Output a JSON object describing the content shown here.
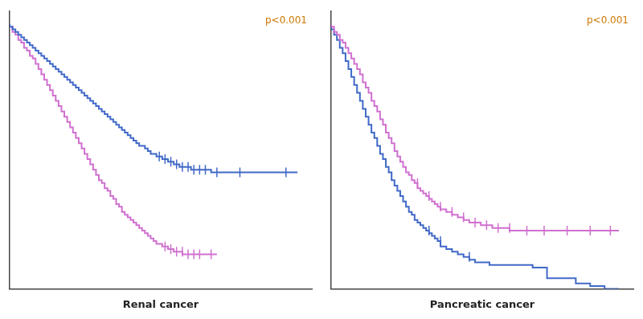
{
  "chart_data": [
    {
      "type": "line",
      "xlabel": "Renal cancer",
      "xlim": [
        0,
        1.05
      ],
      "ylim": [
        0,
        1.05
      ],
      "tick_labels": false,
      "grid": false,
      "annotations": [
        {
          "text": "p<0.001",
          "color": "#CC7700"
        }
      ],
      "series": [
        {
          "type": "line",
          "line_style": "step",
          "color": "#4169C8",
          "x": [
            0,
            0.01,
            0.02,
            0.03,
            0.04,
            0.05,
            0.06,
            0.07,
            0.08,
            0.09,
            0.1,
            0.11,
            0.12,
            0.13,
            0.14,
            0.15,
            0.16,
            0.17,
            0.18,
            0.19,
            0.2,
            0.21,
            0.22,
            0.23,
            0.24,
            0.25,
            0.26,
            0.27,
            0.28,
            0.29,
            0.3,
            0.31,
            0.32,
            0.33,
            0.34,
            0.35,
            0.36,
            0.37,
            0.38,
            0.39,
            0.4,
            0.41,
            0.42,
            0.43,
            0.44,
            0.45,
            0.46,
            0.47,
            0.48,
            0.49,
            0.5,
            0.51,
            0.52,
            0.53,
            0.54,
            0.55,
            0.56,
            0.57,
            0.58,
            0.59,
            0.6,
            0.61,
            0.62,
            0.63,
            0.64,
            0.65,
            0.66,
            0.67,
            0.68,
            0.69,
            0.7,
            0.75,
            0.8,
            0.85,
            0.9,
            0.95,
            1.0
          ],
          "values": [
            1.0,
            0.99,
            0.98,
            0.97,
            0.96,
            0.95,
            0.94,
            0.93,
            0.92,
            0.91,
            0.9,
            0.89,
            0.88,
            0.87,
            0.86,
            0.85,
            0.84,
            0.83,
            0.82,
            0.81,
            0.8,
            0.79,
            0.78,
            0.77,
            0.76,
            0.75,
            0.74,
            0.73,
            0.72,
            0.71,
            0.7,
            0.69,
            0.68,
            0.67,
            0.66,
            0.65,
            0.64,
            0.63,
            0.62,
            0.61,
            0.6,
            0.59,
            0.58,
            0.57,
            0.56,
            0.55,
            0.54,
            0.54,
            0.53,
            0.52,
            0.51,
            0.51,
            0.5,
            0.5,
            0.49,
            0.49,
            0.48,
            0.48,
            0.47,
            0.47,
            0.46,
            0.46,
            0.46,
            0.46,
            0.45,
            0.45,
            0.45,
            0.45,
            0.45,
            0.45,
            0.45,
            0.44,
            0.44,
            0.44,
            0.44,
            0.44,
            0.44
          ]
        },
        {
          "type": "scatter",
          "marker": "|",
          "color": "#4169C8",
          "x": [
            0.52,
            0.54,
            0.56,
            0.58,
            0.6,
            0.62,
            0.64,
            0.66,
            0.68,
            0.72,
            0.8,
            0.96
          ],
          "values": [
            0.5,
            0.49,
            0.48,
            0.47,
            0.46,
            0.46,
            0.45,
            0.45,
            0.45,
            0.44,
            0.44,
            0.44
          ]
        },
        {
          "type": "line",
          "line_style": "step",
          "color": "#D070D0",
          "x": [
            0,
            0.01,
            0.02,
            0.03,
            0.04,
            0.05,
            0.06,
            0.07,
            0.08,
            0.09,
            0.1,
            0.11,
            0.12,
            0.13,
            0.14,
            0.15,
            0.16,
            0.17,
            0.18,
            0.19,
            0.2,
            0.21,
            0.22,
            0.23,
            0.24,
            0.25,
            0.26,
            0.27,
            0.28,
            0.29,
            0.3,
            0.31,
            0.32,
            0.33,
            0.34,
            0.35,
            0.36,
            0.37,
            0.38,
            0.39,
            0.4,
            0.41,
            0.42,
            0.43,
            0.44,
            0.45,
            0.46,
            0.47,
            0.48,
            0.49,
            0.5,
            0.51,
            0.52,
            0.53,
            0.54,
            0.55,
            0.56,
            0.57,
            0.58,
            0.59,
            0.6,
            0.61,
            0.62,
            0.63,
            0.64,
            0.65,
            0.68,
            0.72
          ],
          "values": [
            1.0,
            0.99,
            0.97,
            0.96,
            0.94,
            0.93,
            0.91,
            0.9,
            0.88,
            0.87,
            0.85,
            0.83,
            0.81,
            0.79,
            0.77,
            0.75,
            0.73,
            0.71,
            0.69,
            0.67,
            0.65,
            0.63,
            0.61,
            0.59,
            0.57,
            0.55,
            0.53,
            0.51,
            0.49,
            0.47,
            0.45,
            0.43,
            0.41,
            0.4,
            0.38,
            0.37,
            0.35,
            0.34,
            0.32,
            0.31,
            0.29,
            0.28,
            0.27,
            0.26,
            0.25,
            0.24,
            0.23,
            0.22,
            0.21,
            0.2,
            0.19,
            0.18,
            0.17,
            0.17,
            0.16,
            0.16,
            0.15,
            0.15,
            0.14,
            0.14,
            0.14,
            0.13,
            0.13,
            0.13,
            0.13,
            0.13,
            0.13,
            0.13
          ]
        },
        {
          "type": "scatter",
          "marker": "|",
          "color": "#D070D0",
          "x": [
            0.54,
            0.56,
            0.58,
            0.6,
            0.62,
            0.64,
            0.66,
            0.7
          ],
          "values": [
            0.16,
            0.15,
            0.14,
            0.14,
            0.13,
            0.13,
            0.13,
            0.13
          ]
        }
      ]
    },
    {
      "type": "line",
      "xlabel": "Pancreatic cancer",
      "xlim": [
        0,
        1.05
      ],
      "ylim": [
        0,
        1.05
      ],
      "tick_labels": false,
      "grid": false,
      "annotations": [
        {
          "text": "p<0.001",
          "color": "#CC7700"
        }
      ],
      "series": [
        {
          "type": "line",
          "line_style": "step",
          "color": "#D070D0",
          "x": [
            0,
            0.01,
            0.02,
            0.03,
            0.04,
            0.05,
            0.06,
            0.07,
            0.08,
            0.09,
            0.1,
            0.11,
            0.12,
            0.13,
            0.14,
            0.15,
            0.16,
            0.17,
            0.18,
            0.19,
            0.2,
            0.21,
            0.22,
            0.23,
            0.24,
            0.25,
            0.26,
            0.27,
            0.28,
            0.29,
            0.3,
            0.31,
            0.32,
            0.33,
            0.34,
            0.35,
            0.36,
            0.37,
            0.38,
            0.39,
            0.4,
            0.41,
            0.42,
            0.43,
            0.44,
            0.45,
            0.46,
            0.48,
            0.5,
            0.52,
            0.54,
            0.56,
            0.58,
            0.6,
            0.62,
            0.65,
            0.7,
            0.75,
            0.8,
            0.85,
            0.9,
            0.95,
            1.0
          ],
          "values": [
            1.0,
            0.99,
            0.97,
            0.96,
            0.94,
            0.93,
            0.91,
            0.89,
            0.87,
            0.85,
            0.83,
            0.81,
            0.78,
            0.76,
            0.74,
            0.71,
            0.69,
            0.67,
            0.64,
            0.62,
            0.59,
            0.57,
            0.55,
            0.52,
            0.5,
            0.48,
            0.46,
            0.44,
            0.43,
            0.41,
            0.4,
            0.38,
            0.37,
            0.36,
            0.35,
            0.34,
            0.33,
            0.32,
            0.31,
            0.3,
            0.3,
            0.29,
            0.29,
            0.28,
            0.28,
            0.27,
            0.27,
            0.26,
            0.25,
            0.25,
            0.24,
            0.24,
            0.23,
            0.23,
            0.23,
            0.22,
            0.22,
            0.22,
            0.22,
            0.22,
            0.22,
            0.22,
            0.22
          ]
        },
        {
          "type": "scatter",
          "marker": "|",
          "color": "#D070D0",
          "x": [
            0.3,
            0.34,
            0.38,
            0.42,
            0.46,
            0.5,
            0.54,
            0.58,
            0.62,
            0.68,
            0.74,
            0.82,
            0.9,
            0.97
          ],
          "values": [
            0.4,
            0.35,
            0.31,
            0.29,
            0.27,
            0.25,
            0.24,
            0.23,
            0.23,
            0.22,
            0.22,
            0.22,
            0.22,
            0.22
          ]
        },
        {
          "type": "line",
          "line_style": "step",
          "color": "#4169C8",
          "x": [
            0,
            0.01,
            0.02,
            0.03,
            0.04,
            0.05,
            0.06,
            0.07,
            0.08,
            0.09,
            0.1,
            0.11,
            0.12,
            0.13,
            0.14,
            0.15,
            0.16,
            0.17,
            0.18,
            0.19,
            0.2,
            0.21,
            0.22,
            0.23,
            0.24,
            0.25,
            0.26,
            0.27,
            0.28,
            0.29,
            0.3,
            0.31,
            0.32,
            0.33,
            0.34,
            0.35,
            0.36,
            0.37,
            0.38,
            0.4,
            0.42,
            0.44,
            0.46,
            0.48,
            0.5,
            0.55,
            0.6,
            0.65,
            0.7,
            0.75,
            0.8,
            0.85,
            0.9,
            0.95,
            1.0
          ],
          "values": [
            1.0,
            0.98,
            0.96,
            0.94,
            0.91,
            0.89,
            0.86,
            0.83,
            0.8,
            0.77,
            0.74,
            0.71,
            0.68,
            0.65,
            0.62,
            0.59,
            0.57,
            0.54,
            0.51,
            0.49,
            0.46,
            0.44,
            0.41,
            0.39,
            0.37,
            0.35,
            0.33,
            0.31,
            0.29,
            0.28,
            0.26,
            0.25,
            0.24,
            0.23,
            0.22,
            0.21,
            0.2,
            0.19,
            0.18,
            0.16,
            0.15,
            0.14,
            0.13,
            0.12,
            0.11,
            0.1,
            0.09,
            0.09,
            0.09,
            0.08,
            0.04,
            0.04,
            0.02,
            0.01,
            0.0
          ]
        },
        {
          "type": "scatter",
          "marker": "|",
          "color": "#4169C8",
          "x": [
            0.34,
            0.38,
            0.48
          ],
          "values": [
            0.22,
            0.18,
            0.12
          ]
        }
      ]
    }
  ]
}
